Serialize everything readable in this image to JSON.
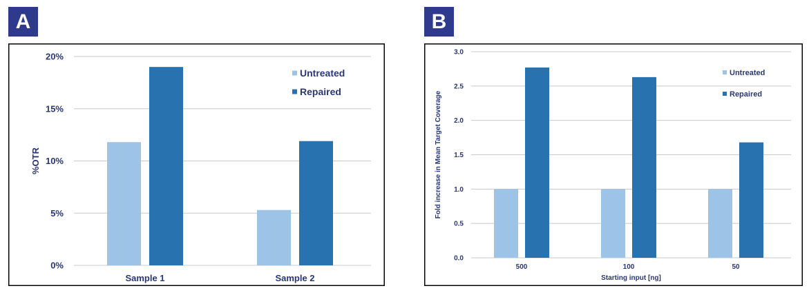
{
  "panels": {
    "a": {
      "label": "A"
    },
    "b": {
      "label": "B"
    }
  },
  "chart_data": [
    {
      "panel": "A",
      "type": "bar",
      "categories": [
        "Sample 1",
        "Sample 2"
      ],
      "series": [
        {
          "name": "Untreated",
          "values": [
            11.8,
            5.3
          ],
          "color": "#9dc3e6"
        },
        {
          "name": "Repaired",
          "values": [
            19.0,
            11.9
          ],
          "color": "#2872b0"
        }
      ],
      "title": "",
      "xlabel": "",
      "ylabel": "%OTR",
      "ylim": [
        0,
        20
      ],
      "yticks": [
        0,
        5,
        10,
        15,
        20
      ],
      "ytick_labels": [
        "0%",
        "5%",
        "10%",
        "15%",
        "20%"
      ],
      "grid": true,
      "legend": "top-right"
    },
    {
      "panel": "B",
      "type": "bar",
      "categories": [
        "500",
        "100",
        "50"
      ],
      "series": [
        {
          "name": "Untreated",
          "values": [
            1.0,
            1.0,
            1.0
          ],
          "color": "#9dc3e6"
        },
        {
          "name": "Repaired",
          "values": [
            2.77,
            2.63,
            1.68
          ],
          "color": "#2872b0"
        }
      ],
      "title": "",
      "xlabel": "Starting input [ng]",
      "ylabel": "Fold increase in Mean Target Coverage",
      "ylim": [
        0,
        3
      ],
      "yticks": [
        0,
        0.5,
        1,
        1.5,
        2,
        2.5,
        3
      ],
      "ytick_labels": [
        "0.0",
        "0.5",
        "1.0",
        "1.5",
        "2.0",
        "2.5",
        "3.0"
      ],
      "grid": true,
      "legend": "top-right"
    }
  ]
}
